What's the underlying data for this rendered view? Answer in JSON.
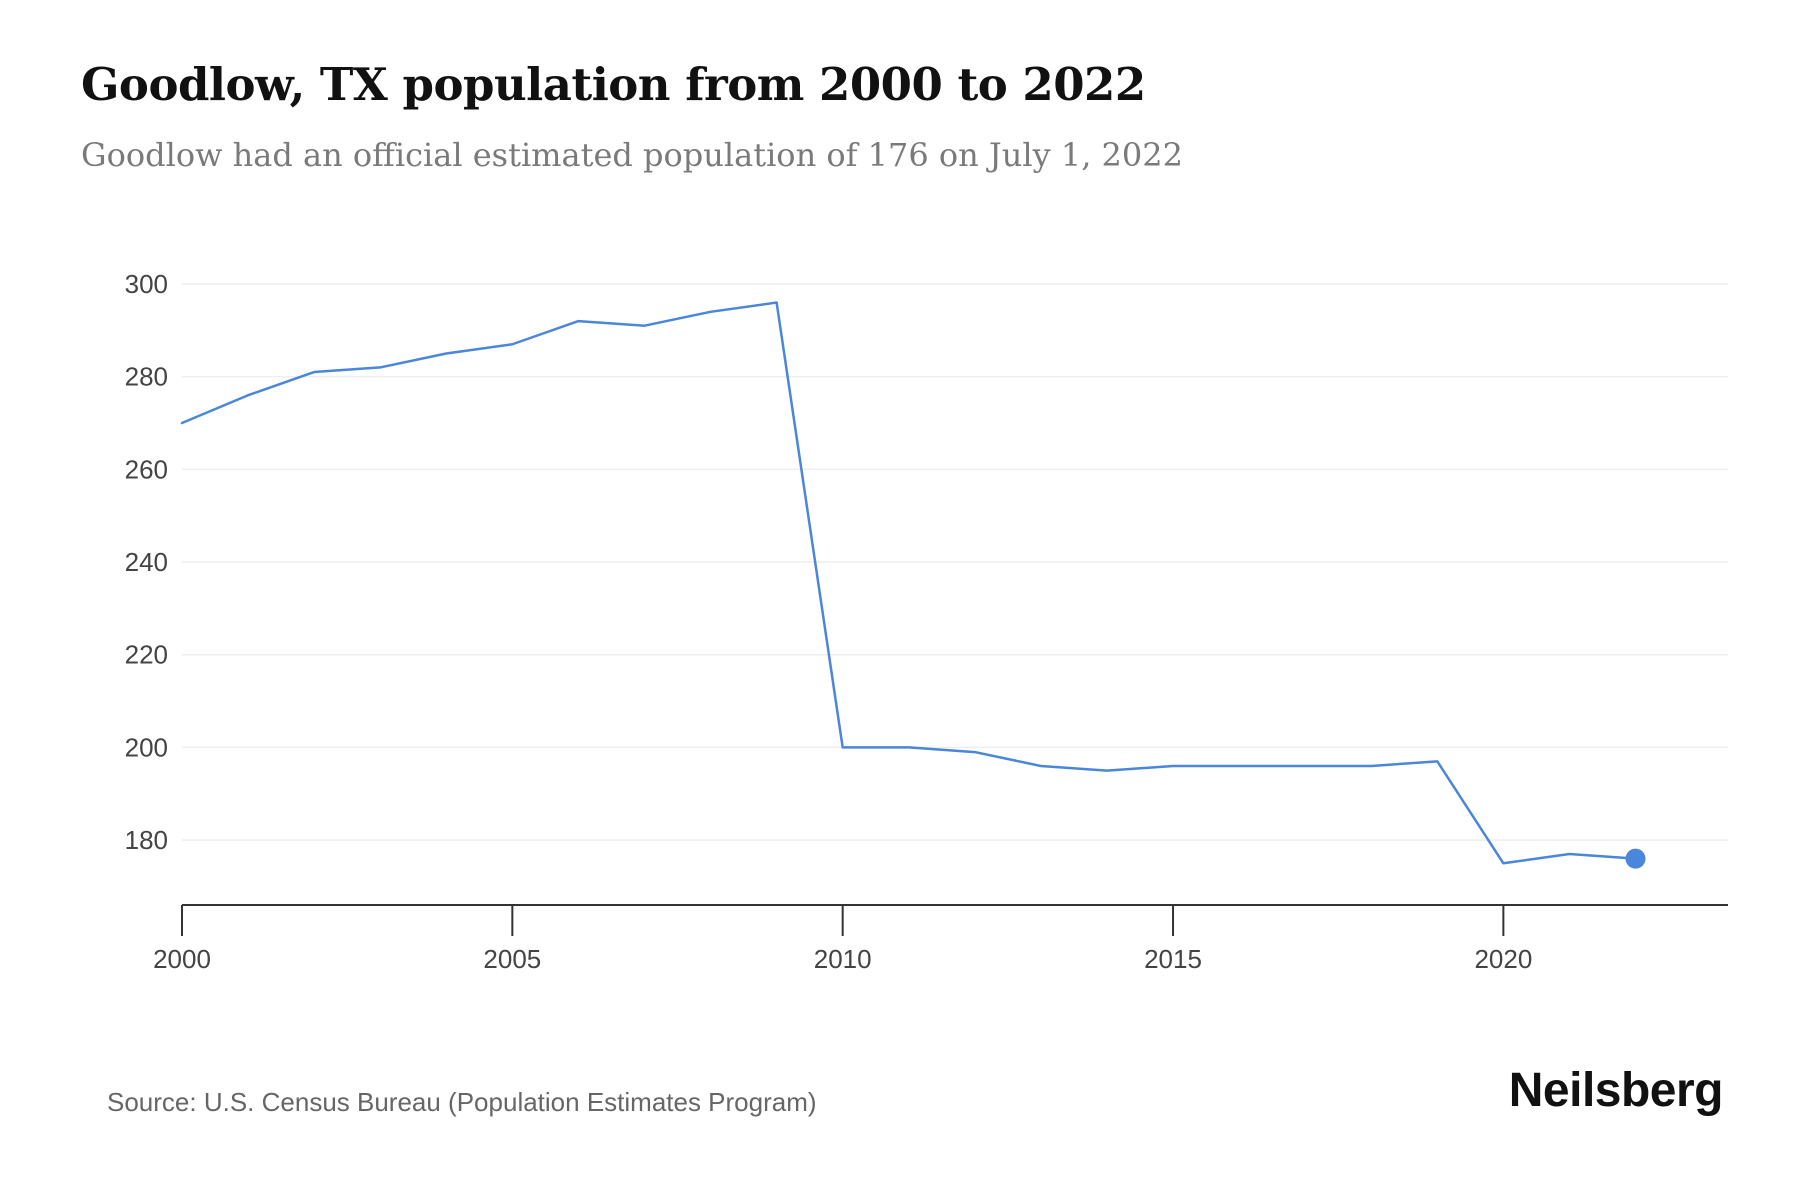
{
  "header": {
    "title": "Goodlow, TX population from 2000 to 2022",
    "subtitle": "Goodlow had an official estimated population of 176 on July 1, 2022"
  },
  "footer": {
    "source": "Source: U.S. Census Bureau (Population Estimates Program)",
    "brand": "Neilsberg"
  },
  "colors": {
    "line": "#4a86d9",
    "grid": "#eeeeee",
    "axis": "#333333"
  },
  "chart_data": {
    "type": "line",
    "title": "Goodlow, TX population from 2000 to 2022",
    "subtitle": "Goodlow had an official estimated population of 176 on July 1, 2022",
    "xlabel": "",
    "ylabel": "",
    "x": [
      2000,
      2001,
      2002,
      2003,
      2004,
      2005,
      2006,
      2007,
      2008,
      2009,
      2010,
      2011,
      2012,
      2013,
      2014,
      2015,
      2016,
      2017,
      2018,
      2019,
      2020,
      2021,
      2022
    ],
    "series": [
      {
        "values": [
          270,
          276,
          281,
          282,
          285,
          287,
          292,
          291,
          294,
          296,
          200,
          200,
          199,
          196,
          195,
          196,
          196,
          196,
          196,
          197,
          175,
          177,
          176
        ]
      }
    ],
    "xlim": [
      2000,
      2023.4
    ],
    "ylim": [
      166,
      300
    ],
    "x_ticks": [
      2000,
      2005,
      2010,
      2015,
      2020
    ],
    "y_ticks": [
      180,
      200,
      220,
      240,
      260,
      280,
      300
    ],
    "grid": "horizontal",
    "highlight_last_point": true
  }
}
